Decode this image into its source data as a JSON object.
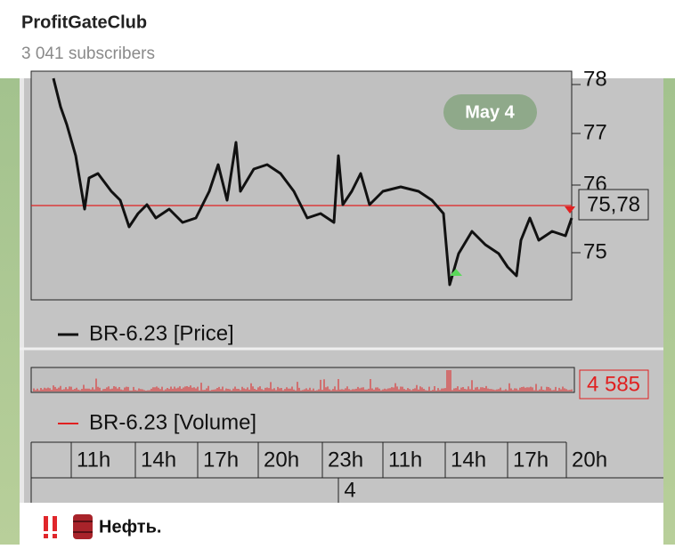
{
  "channel": {
    "name": "ProfitGateClub",
    "subscribers": "3 041 subscribers"
  },
  "date_badge": "May 4",
  "chart": {
    "price_axis": [
      "78",
      "77",
      "76",
      "75"
    ],
    "last_price": "75,78",
    "price_legend": "BR-6.23 [Price]",
    "last_volume": "4 585",
    "volume_legend": "BR-6.23 [Volume]",
    "time_labels": [
      "11h",
      "14h",
      "17h",
      "20h",
      "23h",
      "11h",
      "14h",
      "17h",
      "20h"
    ],
    "day_label": "4"
  },
  "message": {
    "text": "Нефть."
  }
}
